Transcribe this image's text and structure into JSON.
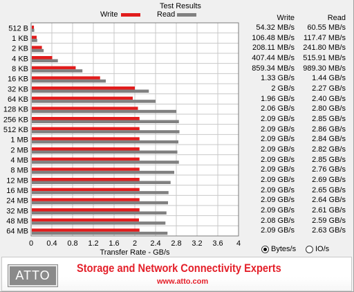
{
  "group_title": "Test Results",
  "legend": {
    "write_label": "Write",
    "read_label": "Read",
    "write_color": "#e11c1c",
    "read_color": "#808080"
  },
  "columns": {
    "write_header": "Write",
    "read_header": "Read"
  },
  "units": {
    "options": [
      {
        "label": "Bytes/s",
        "selected": true
      },
      {
        "label": "IO/s",
        "selected": false
      }
    ]
  },
  "banner": {
    "logo_text": "ATTO",
    "tagline": "Storage and Network Connectivity Experts",
    "website": "www.atto.com"
  },
  "chart_data": {
    "type": "bar",
    "orientation": "horizontal",
    "xlabel": "Transfer Rate - GB/s",
    "xlim": [
      0,
      4
    ],
    "xticks": [
      "0",
      "0.4",
      "0.8",
      "1.2",
      "1.6",
      "2",
      "2.4",
      "2.8",
      "3.2",
      "3.6",
      "4"
    ],
    "grid": true,
    "legend_position": "top",
    "categories": [
      "512 B",
      "1 KB",
      "2 KB",
      "4 KB",
      "8 KB",
      "16 KB",
      "32 KB",
      "64 KB",
      "128 KB",
      "256 KB",
      "512 KB",
      "1 MB",
      "2 MB",
      "4 MB",
      "8 MB",
      "12 MB",
      "16 MB",
      "24 MB",
      "32 MB",
      "48 MB",
      "64 MB"
    ],
    "series": [
      {
        "name": "Write",
        "values": [
          0.05432,
          0.10648,
          0.20811,
          0.40744,
          0.85934,
          1.33,
          2.0,
          1.96,
          2.06,
          2.09,
          2.09,
          2.09,
          2.09,
          2.09,
          2.09,
          2.09,
          2.09,
          2.09,
          2.09,
          2.08,
          2.09
        ],
        "labels": [
          "54.32 MB/s",
          "106.48 MB/s",
          "208.11 MB/s",
          "407.44 MB/s",
          "859.34 MB/s",
          "1.33 GB/s",
          "2 GB/s",
          "1.96 GB/s",
          "2.06 GB/s",
          "2.09 GB/s",
          "2.09 GB/s",
          "2.09 GB/s",
          "2.09 GB/s",
          "2.09 GB/s",
          "2.09 GB/s",
          "2.09 GB/s",
          "2.09 GB/s",
          "2.09 GB/s",
          "2.09 GB/s",
          "2.08 GB/s",
          "2.09 GB/s"
        ]
      },
      {
        "name": "Read",
        "values": [
          0.06055,
          0.11747,
          0.2418,
          0.51591,
          0.9893,
          1.44,
          2.27,
          2.4,
          2.8,
          2.85,
          2.86,
          2.84,
          2.82,
          2.85,
          2.76,
          2.69,
          2.65,
          2.64,
          2.61,
          2.59,
          2.63
        ],
        "labels": [
          "60.55 MB/s",
          "117.47 MB/s",
          "241.80 MB/s",
          "515.91 MB/s",
          "989.30 MB/s",
          "1.44 GB/s",
          "2.27 GB/s",
          "2.40 GB/s",
          "2.80 GB/s",
          "2.85 GB/s",
          "2.86 GB/s",
          "2.84 GB/s",
          "2.82 GB/s",
          "2.85 GB/s",
          "2.76 GB/s",
          "2.69 GB/s",
          "2.65 GB/s",
          "2.64 GB/s",
          "2.61 GB/s",
          "2.59 GB/s",
          "2.63 GB/s"
        ]
      }
    ]
  }
}
